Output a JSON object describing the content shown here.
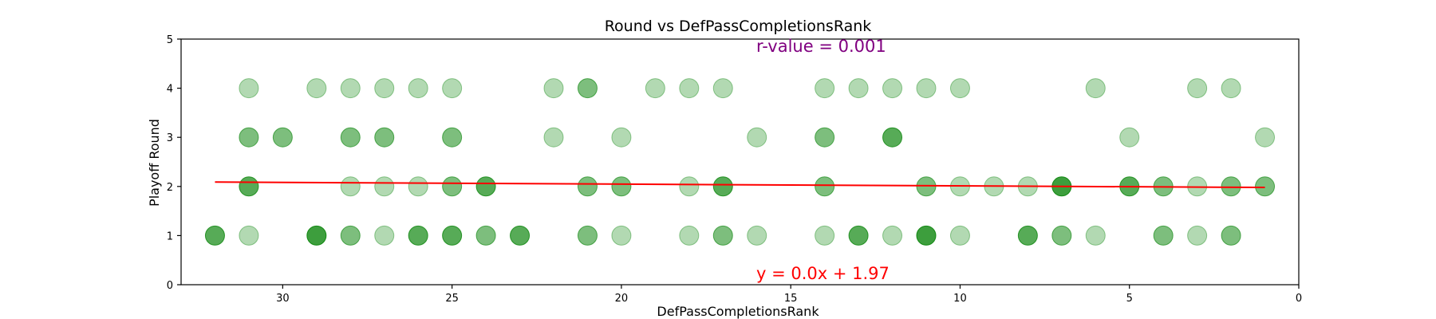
{
  "chart_data": {
    "type": "scatter",
    "title": "Round vs DefPassCompletionsRank",
    "xlabel": "DefPassCompletionsRank",
    "ylabel": "Playoff Round",
    "xlim": [
      33,
      0
    ],
    "ylim": [
      0,
      5
    ],
    "x_ticks": [
      30,
      25,
      20,
      15,
      10,
      5,
      0
    ],
    "y_ticks": [
      0,
      1,
      2,
      3,
      4,
      5
    ],
    "x_tick_labels": [
      "30",
      "25",
      "20",
      "15",
      "10",
      "5",
      "0"
    ],
    "y_tick_labels": [
      "0",
      "1",
      "2",
      "3",
      "4",
      "5"
    ],
    "point_color": "#008000",
    "line_color": "#ff0000",
    "r_value_color": "#800080",
    "points": [
      {
        "x": 31,
        "y": 4,
        "n": 1
      },
      {
        "x": 29,
        "y": 4,
        "n": 1
      },
      {
        "x": 28,
        "y": 4,
        "n": 1
      },
      {
        "x": 27,
        "y": 4,
        "n": 1
      },
      {
        "x": 26,
        "y": 4,
        "n": 1
      },
      {
        "x": 25,
        "y": 4,
        "n": 1
      },
      {
        "x": 22,
        "y": 4,
        "n": 1
      },
      {
        "x": 21,
        "y": 4,
        "n": 2
      },
      {
        "x": 19,
        "y": 4,
        "n": 1
      },
      {
        "x": 18,
        "y": 4,
        "n": 1
      },
      {
        "x": 17,
        "y": 4,
        "n": 1
      },
      {
        "x": 14,
        "y": 4,
        "n": 1
      },
      {
        "x": 13,
        "y": 4,
        "n": 1
      },
      {
        "x": 12,
        "y": 4,
        "n": 1
      },
      {
        "x": 11,
        "y": 4,
        "n": 1
      },
      {
        "x": 10,
        "y": 4,
        "n": 1
      },
      {
        "x": 6,
        "y": 4,
        "n": 1
      },
      {
        "x": 3,
        "y": 4,
        "n": 1
      },
      {
        "x": 2,
        "y": 4,
        "n": 1
      },
      {
        "x": 31,
        "y": 3,
        "n": 2
      },
      {
        "x": 30,
        "y": 3,
        "n": 2
      },
      {
        "x": 28,
        "y": 3,
        "n": 2
      },
      {
        "x": 27,
        "y": 3,
        "n": 2
      },
      {
        "x": 25,
        "y": 3,
        "n": 2
      },
      {
        "x": 22,
        "y": 3,
        "n": 1
      },
      {
        "x": 20,
        "y": 3,
        "n": 1
      },
      {
        "x": 16,
        "y": 3,
        "n": 1
      },
      {
        "x": 14,
        "y": 3,
        "n": 2
      },
      {
        "x": 12,
        "y": 3,
        "n": 3
      },
      {
        "x": 5,
        "y": 3,
        "n": 1
      },
      {
        "x": 1,
        "y": 3,
        "n": 1
      },
      {
        "x": 31,
        "y": 2,
        "n": 3
      },
      {
        "x": 28,
        "y": 2,
        "n": 1
      },
      {
        "x": 27,
        "y": 2,
        "n": 1
      },
      {
        "x": 26,
        "y": 2,
        "n": 1
      },
      {
        "x": 25,
        "y": 2,
        "n": 2
      },
      {
        "x": 24,
        "y": 2,
        "n": 3
      },
      {
        "x": 21,
        "y": 2,
        "n": 2
      },
      {
        "x": 20,
        "y": 2,
        "n": 2
      },
      {
        "x": 18,
        "y": 2,
        "n": 1
      },
      {
        "x": 17,
        "y": 2,
        "n": 3
      },
      {
        "x": 14,
        "y": 2,
        "n": 2
      },
      {
        "x": 11,
        "y": 2,
        "n": 2
      },
      {
        "x": 10,
        "y": 2,
        "n": 1
      },
      {
        "x": 9,
        "y": 2,
        "n": 1
      },
      {
        "x": 8,
        "y": 2,
        "n": 1
      },
      {
        "x": 7,
        "y": 2,
        "n": 4
      },
      {
        "x": 5,
        "y": 2,
        "n": 3
      },
      {
        "x": 4,
        "y": 2,
        "n": 2
      },
      {
        "x": 3,
        "y": 2,
        "n": 1
      },
      {
        "x": 2,
        "y": 2,
        "n": 2
      },
      {
        "x": 1,
        "y": 2,
        "n": 2
      },
      {
        "x": 32,
        "y": 1,
        "n": 3
      },
      {
        "x": 31,
        "y": 1,
        "n": 1
      },
      {
        "x": 29,
        "y": 1,
        "n": 4
      },
      {
        "x": 28,
        "y": 1,
        "n": 2
      },
      {
        "x": 27,
        "y": 1,
        "n": 1
      },
      {
        "x": 26,
        "y": 1,
        "n": 3
      },
      {
        "x": 25,
        "y": 1,
        "n": 3
      },
      {
        "x": 24,
        "y": 1,
        "n": 2
      },
      {
        "x": 23,
        "y": 1,
        "n": 3
      },
      {
        "x": 21,
        "y": 1,
        "n": 2
      },
      {
        "x": 20,
        "y": 1,
        "n": 1
      },
      {
        "x": 18,
        "y": 1,
        "n": 1
      },
      {
        "x": 17,
        "y": 1,
        "n": 2
      },
      {
        "x": 16,
        "y": 1,
        "n": 1
      },
      {
        "x": 14,
        "y": 1,
        "n": 1
      },
      {
        "x": 13,
        "y": 1,
        "n": 3
      },
      {
        "x": 12,
        "y": 1,
        "n": 1
      },
      {
        "x": 11,
        "y": 1,
        "n": 4
      },
      {
        "x": 10,
        "y": 1,
        "n": 1
      },
      {
        "x": 8,
        "y": 1,
        "n": 3
      },
      {
        "x": 7,
        "y": 1,
        "n": 2
      },
      {
        "x": 6,
        "y": 1,
        "n": 1
      },
      {
        "x": 4,
        "y": 1,
        "n": 2
      },
      {
        "x": 3,
        "y": 1,
        "n": 1
      },
      {
        "x": 2,
        "y": 1,
        "n": 2
      }
    ],
    "regression": {
      "x_start": 32,
      "y_start": 2.09,
      "x_end": 1,
      "y_end": 1.98,
      "equation_label": "y = 0.0x + 1.97",
      "r_value_label": "r-value = 0.001"
    }
  }
}
